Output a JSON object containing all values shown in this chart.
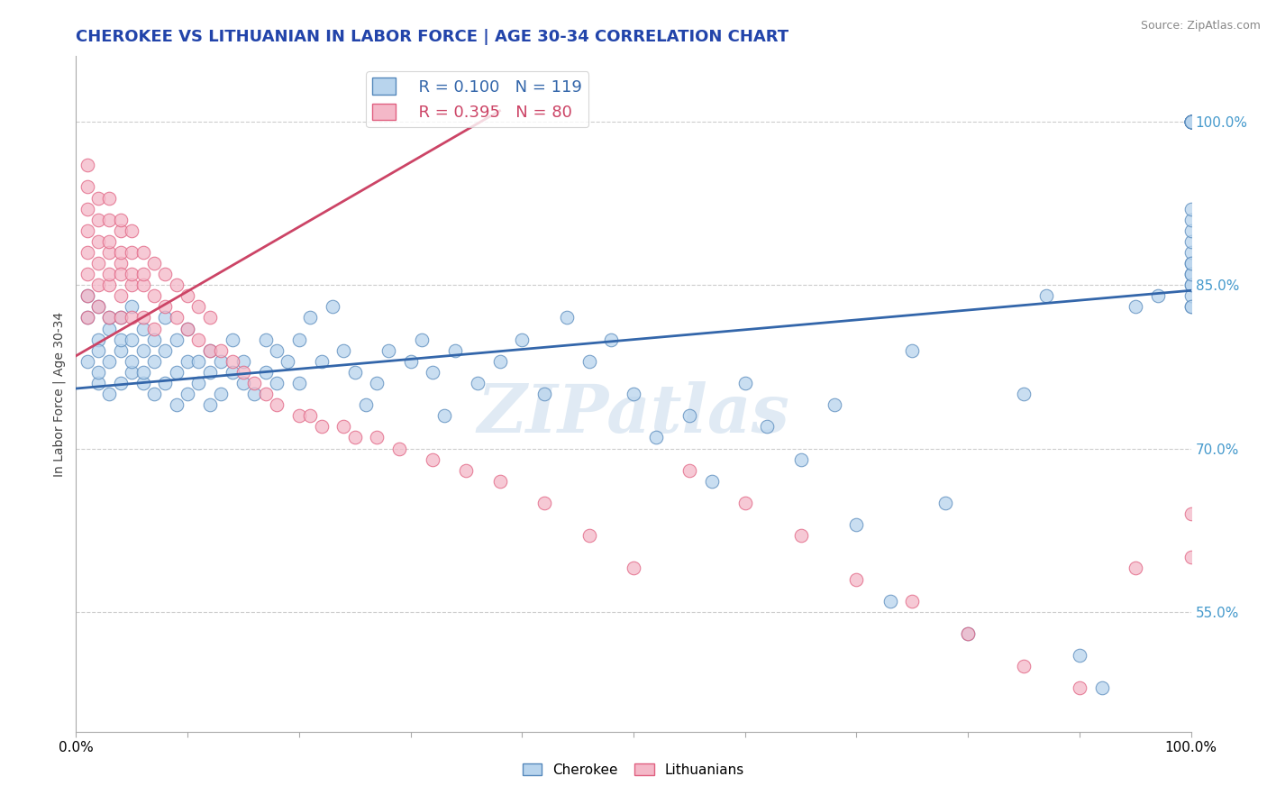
{
  "title": "CHEROKEE VS LITHUANIAN IN LABOR FORCE | AGE 30-34 CORRELATION CHART",
  "source_text": "Source: ZipAtlas.com",
  "ylabel": "In Labor Force | Age 30-34",
  "watermark": "ZIPatlas",
  "legend_blue_r": "R = 0.100",
  "legend_blue_n": "N = 119",
  "legend_pink_r": "R = 0.395",
  "legend_pink_n": "N = 80",
  "blue_color": "#b8d4ed",
  "pink_color": "#f4b8c8",
  "blue_edge_color": "#5588bb",
  "pink_edge_color": "#e06080",
  "blue_line_color": "#3366aa",
  "pink_line_color": "#cc4466",
  "right_ytick_labels": [
    "55.0%",
    "70.0%",
    "85.0%",
    "100.0%"
  ],
  "right_ytick_values": [
    0.55,
    0.7,
    0.85,
    1.0
  ],
  "xlim": [
    0.0,
    1.0
  ],
  "ylim": [
    0.44,
    1.06
  ],
  "blue_trend_x0": 0.0,
  "blue_trend_y0": 0.755,
  "blue_trend_x1": 1.0,
  "blue_trend_y1": 0.845,
  "pink_trend_x0": 0.0,
  "pink_trend_y0": 0.785,
  "pink_trend_x1": 0.38,
  "pink_trend_y1": 1.01,
  "blue_scatter_x": [
    0.01,
    0.01,
    0.01,
    0.02,
    0.02,
    0.02,
    0.02,
    0.02,
    0.03,
    0.03,
    0.03,
    0.03,
    0.04,
    0.04,
    0.04,
    0.04,
    0.05,
    0.05,
    0.05,
    0.05,
    0.06,
    0.06,
    0.06,
    0.06,
    0.07,
    0.07,
    0.07,
    0.08,
    0.08,
    0.08,
    0.09,
    0.09,
    0.09,
    0.1,
    0.1,
    0.1,
    0.11,
    0.11,
    0.12,
    0.12,
    0.12,
    0.13,
    0.13,
    0.14,
    0.14,
    0.15,
    0.15,
    0.16,
    0.17,
    0.17,
    0.18,
    0.18,
    0.19,
    0.2,
    0.2,
    0.21,
    0.22,
    0.23,
    0.24,
    0.25,
    0.26,
    0.27,
    0.28,
    0.3,
    0.31,
    0.32,
    0.33,
    0.34,
    0.36,
    0.38,
    0.4,
    0.42,
    0.44,
    0.46,
    0.48,
    0.5,
    0.52,
    0.55,
    0.57,
    0.6,
    0.62,
    0.65,
    0.68,
    0.7,
    0.73,
    0.75,
    0.78,
    0.8,
    0.85,
    0.87,
    0.9,
    0.92,
    0.95,
    0.97,
    1.0,
    1.0,
    1.0,
    1.0,
    1.0,
    1.0,
    1.0,
    1.0,
    1.0,
    1.0,
    1.0,
    1.0,
    1.0,
    1.0,
    1.0,
    1.0,
    1.0,
    1.0,
    1.0,
    1.0,
    1.0,
    1.0,
    1.0,
    1.0,
    1.0
  ],
  "blue_scatter_y": [
    0.82,
    0.78,
    0.84,
    0.8,
    0.76,
    0.83,
    0.77,
    0.79,
    0.81,
    0.78,
    0.75,
    0.82,
    0.79,
    0.76,
    0.82,
    0.8,
    0.77,
    0.8,
    0.83,
    0.78,
    0.79,
    0.76,
    0.81,
    0.77,
    0.8,
    0.78,
    0.75,
    0.79,
    0.76,
    0.82,
    0.77,
    0.8,
    0.74,
    0.78,
    0.75,
    0.81,
    0.78,
    0.76,
    0.79,
    0.77,
    0.74,
    0.78,
    0.75,
    0.77,
    0.8,
    0.76,
    0.78,
    0.75,
    0.8,
    0.77,
    0.79,
    0.76,
    0.78,
    0.8,
    0.76,
    0.82,
    0.78,
    0.83,
    0.79,
    0.77,
    0.74,
    0.76,
    0.79,
    0.78,
    0.8,
    0.77,
    0.73,
    0.79,
    0.76,
    0.78,
    0.8,
    0.75,
    0.82,
    0.78,
    0.8,
    0.75,
    0.71,
    0.73,
    0.67,
    0.76,
    0.72,
    0.69,
    0.74,
    0.63,
    0.56,
    0.79,
    0.65,
    0.53,
    0.75,
    0.84,
    0.51,
    0.48,
    0.83,
    0.84,
    0.85,
    0.86,
    0.87,
    0.88,
    0.89,
    0.9,
    0.91,
    0.92,
    0.83,
    0.84,
    0.85,
    0.86,
    0.87,
    0.83,
    1.0,
    1.0,
    1.0,
    1.0,
    1.0,
    1.0,
    1.0,
    1.0,
    1.0,
    1.0,
    1.0
  ],
  "pink_scatter_x": [
    0.01,
    0.01,
    0.01,
    0.01,
    0.01,
    0.01,
    0.01,
    0.01,
    0.02,
    0.02,
    0.02,
    0.02,
    0.02,
    0.02,
    0.03,
    0.03,
    0.03,
    0.03,
    0.03,
    0.03,
    0.03,
    0.04,
    0.04,
    0.04,
    0.04,
    0.04,
    0.04,
    0.04,
    0.05,
    0.05,
    0.05,
    0.05,
    0.05,
    0.06,
    0.06,
    0.06,
    0.06,
    0.07,
    0.07,
    0.07,
    0.08,
    0.08,
    0.09,
    0.09,
    0.1,
    0.1,
    0.11,
    0.11,
    0.12,
    0.12,
    0.13,
    0.14,
    0.15,
    0.16,
    0.17,
    0.18,
    0.2,
    0.21,
    0.22,
    0.24,
    0.25,
    0.27,
    0.29,
    0.32,
    0.35,
    0.38,
    0.42,
    0.46,
    0.5,
    0.55,
    0.6,
    0.65,
    0.7,
    0.75,
    0.8,
    0.85,
    0.9,
    0.95,
    1.0,
    1.0
  ],
  "pink_scatter_y": [
    0.88,
    0.92,
    0.86,
    0.9,
    0.84,
    0.94,
    0.82,
    0.96,
    0.87,
    0.91,
    0.85,
    0.89,
    0.83,
    0.93,
    0.88,
    0.85,
    0.91,
    0.82,
    0.86,
    0.89,
    0.93,
    0.87,
    0.84,
    0.9,
    0.82,
    0.86,
    0.88,
    0.91,
    0.85,
    0.88,
    0.82,
    0.86,
    0.9,
    0.85,
    0.88,
    0.82,
    0.86,
    0.84,
    0.87,
    0.81,
    0.83,
    0.86,
    0.82,
    0.85,
    0.81,
    0.84,
    0.8,
    0.83,
    0.79,
    0.82,
    0.79,
    0.78,
    0.77,
    0.76,
    0.75,
    0.74,
    0.73,
    0.73,
    0.72,
    0.72,
    0.71,
    0.71,
    0.7,
    0.69,
    0.68,
    0.67,
    0.65,
    0.62,
    0.59,
    0.68,
    0.65,
    0.62,
    0.58,
    0.56,
    0.53,
    0.5,
    0.48,
    0.59,
    0.64,
    0.6
  ]
}
